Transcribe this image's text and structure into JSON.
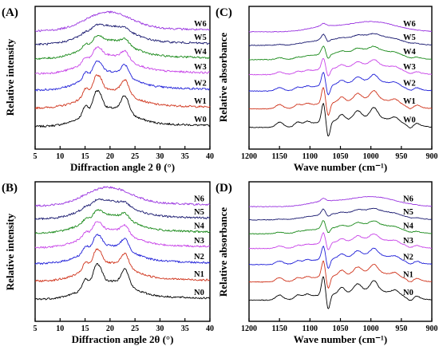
{
  "chart_data": [
    {
      "panel": "(A)",
      "type": "line",
      "kind": "xrd",
      "xlabel": "Diffraction angle 2 θ (°)",
      "ylabel": "Relative intensity",
      "xlim": [
        5,
        40
      ],
      "xticks": [
        "5",
        "10",
        "15",
        "20",
        "25",
        "30",
        "35",
        "40"
      ],
      "x_reversed": false,
      "series": [
        {
          "name": "W0",
          "color": "#000000"
        },
        {
          "name": "W1",
          "color": "#d0341c"
        },
        {
          "name": "W2",
          "color": "#1f1fd8"
        },
        {
          "name": "W3",
          "color": "#c844e8"
        },
        {
          "name": "W4",
          "color": "#1a8a1a"
        },
        {
          "name": "W5",
          "color": "#1a1a70"
        },
        {
          "name": "W6",
          "color": "#9a35e0"
        }
      ]
    },
    {
      "panel": "(B)",
      "type": "line",
      "kind": "xrd",
      "xlabel": "Diffraction angle 2θ (°)",
      "ylabel": "Relative intensity",
      "xlim": [
        5,
        40
      ],
      "xticks": [
        "5",
        "10",
        "15",
        "20",
        "25",
        "30",
        "35",
        "40"
      ],
      "x_reversed": false,
      "series": [
        {
          "name": "N0",
          "color": "#000000"
        },
        {
          "name": "N1",
          "color": "#d0341c"
        },
        {
          "name": "N2",
          "color": "#1f1fd8"
        },
        {
          "name": "N3",
          "color": "#c844e8"
        },
        {
          "name": "N4",
          "color": "#1a8a1a"
        },
        {
          "name": "N5",
          "color": "#1a1a70"
        },
        {
          "name": "N6",
          "color": "#9a35e0"
        }
      ]
    },
    {
      "panel": "(C)",
      "type": "line",
      "kind": "ftir",
      "xlabel": "Wave number (cm⁻¹)",
      "ylabel": "Relative absorbance",
      "xlim": [
        1200,
        900
      ],
      "xticks": [
        "1200",
        "1150",
        "1100",
        "1050",
        "1000",
        "950",
        "900"
      ],
      "x_reversed": true,
      "series": [
        {
          "name": "W0",
          "color": "#000000"
        },
        {
          "name": "W1",
          "color": "#d0341c"
        },
        {
          "name": "W2",
          "color": "#1f1fd8"
        },
        {
          "name": "W3",
          "color": "#c844e8"
        },
        {
          "name": "W4",
          "color": "#1a8a1a"
        },
        {
          "name": "W5",
          "color": "#1a1a70"
        },
        {
          "name": "W6",
          "color": "#9a35e0"
        }
      ]
    },
    {
      "panel": "(D)",
      "type": "line",
      "kind": "ftir",
      "xlabel": "Wave number (cm⁻¹)",
      "ylabel": "Relative absorbance",
      "xlim": [
        1200,
        900
      ],
      "xticks": [
        "1200",
        "1150",
        "1100",
        "1050",
        "1000",
        "950",
        "900"
      ],
      "x_reversed": true,
      "series": [
        {
          "name": "N0",
          "color": "#000000"
        },
        {
          "name": "N1",
          "color": "#d0341c"
        },
        {
          "name": "N2",
          "color": "#1f1fd8"
        },
        {
          "name": "N3",
          "color": "#c844e8"
        },
        {
          "name": "N4",
          "color": "#1a8a1a"
        },
        {
          "name": "N5",
          "color": "#1a1a70"
        },
        {
          "name": "N6",
          "color": "#9a35e0"
        }
      ]
    }
  ]
}
